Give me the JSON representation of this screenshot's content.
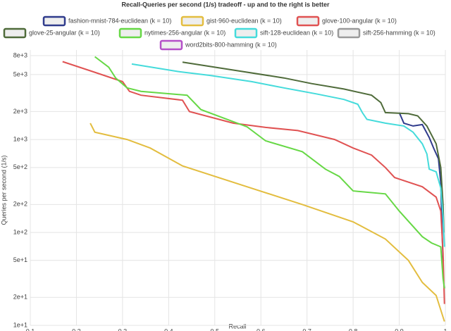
{
  "chart_data": {
    "type": "line",
    "title": "Recall-Queries per second (1/s) tradeoff - up and to the right is better",
    "x_label": "Recall",
    "y_label": "Queries per second (1/s)",
    "log_y": true,
    "grid": true,
    "xlim": [
      0.1,
      1
    ],
    "xticks": [
      0.1,
      0.2,
      0.3,
      0.4,
      0.5,
      0.6,
      0.7,
      0.8,
      0.9,
      1
    ],
    "ylim": [
      10,
      8000
    ],
    "yticks": [
      {
        "value": 10,
        "label": "1e+1"
      },
      {
        "value": 20,
        "label": "2e+1"
      },
      {
        "value": 50,
        "label": "5e+1"
      },
      {
        "value": 100,
        "label": "1e+2"
      },
      {
        "value": 200,
        "label": "2e+2"
      },
      {
        "value": 500,
        "label": "5e+2"
      },
      {
        "value": 1000,
        "label": "1e+3"
      },
      {
        "value": 2000,
        "label": "2e+3"
      },
      {
        "value": 5000,
        "label": "5e+3"
      },
      {
        "value": 8000,
        "label": "8e+3"
      }
    ],
    "series": [
      {
        "name": "fashion-mnist-784-euclidean (k = 10)",
        "color": "#2f3b8c",
        "x": [
          0.9,
          0.91,
          0.93,
          0.95,
          0.965,
          0.975,
          0.985,
          0.99,
          0.993,
          0.995
        ],
        "values": [
          1950,
          1500,
          1400,
          1450,
          1050,
          800,
          620,
          340,
          100,
          50
        ]
      },
      {
        "name": "gist-960-euclidean (k = 10)",
        "color": "#e3bd3f",
        "x": [
          0.23,
          0.24,
          0.31,
          0.36,
          0.43,
          0.57,
          0.69,
          0.8,
          0.87,
          0.92,
          0.95,
          0.98,
          0.998
        ],
        "values": [
          1500,
          1200,
          1000,
          810,
          520,
          310,
          200,
          130,
          85,
          50,
          29,
          21,
          11
        ]
      },
      {
        "name": "glove-100-angular (k = 10)",
        "color": "#e05252",
        "x": [
          0.17,
          0.23,
          0.3,
          0.315,
          0.34,
          0.43,
          0.445,
          0.54,
          0.61,
          0.68,
          0.76,
          0.8,
          0.84,
          0.87,
          0.89,
          0.95,
          0.98,
          0.99,
          0.995,
          0.998
        ],
        "values": [
          6900,
          5500,
          4200,
          3300,
          3000,
          2650,
          2000,
          1500,
          1350,
          1250,
          1000,
          810,
          680,
          500,
          390,
          310,
          240,
          170,
          60,
          17
        ]
      },
      {
        "name": "glove-25-angular (k = 10)",
        "color": "#4f6b3a",
        "x": [
          0.43,
          0.55,
          0.65,
          0.71,
          0.78,
          0.84,
          0.86,
          0.87,
          0.92,
          0.94,
          0.96,
          0.98,
          0.99,
          0.995,
          0.997
        ],
        "values": [
          6800,
          5500,
          4600,
          4000,
          3500,
          3000,
          2500,
          1950,
          1900,
          1800,
          1400,
          900,
          500,
          200,
          100
        ]
      },
      {
        "name": "nytimes-256-angular (k = 10)",
        "color": "#66d845",
        "x": [
          0.24,
          0.27,
          0.285,
          0.31,
          0.34,
          0.44,
          0.47,
          0.57,
          0.61,
          0.69,
          0.74,
          0.77,
          0.8,
          0.87,
          0.9,
          0.95,
          0.97,
          0.99,
          0.995,
          0.998
        ],
        "values": [
          7800,
          6000,
          4600,
          3600,
          3300,
          3000,
          2100,
          1370,
          970,
          740,
          480,
          400,
          280,
          260,
          170,
          90,
          77,
          70,
          32,
          25
        ]
      },
      {
        "name": "sift-128-euclidean (k = 10)",
        "color": "#45dbdb",
        "x": [
          0.32,
          0.42,
          0.49,
          0.58,
          0.65,
          0.72,
          0.78,
          0.81,
          0.82,
          0.83,
          0.87,
          0.91,
          0.93,
          0.95,
          0.96,
          0.965,
          0.98,
          0.99,
          0.995,
          0.998
        ],
        "values": [
          6500,
          5400,
          4900,
          4200,
          3600,
          3100,
          2700,
          2400,
          1950,
          1650,
          1500,
          1400,
          1200,
          900,
          700,
          480,
          450,
          300,
          150,
          70
        ]
      },
      {
        "name": "sift-256-hamming (k = 10)",
        "color": "#9a9a9a",
        "x": [],
        "values": []
      },
      {
        "name": "word2bits-800-hamming (k = 10)",
        "color": "#b44fc8",
        "x": [],
        "values": []
      }
    ]
  }
}
